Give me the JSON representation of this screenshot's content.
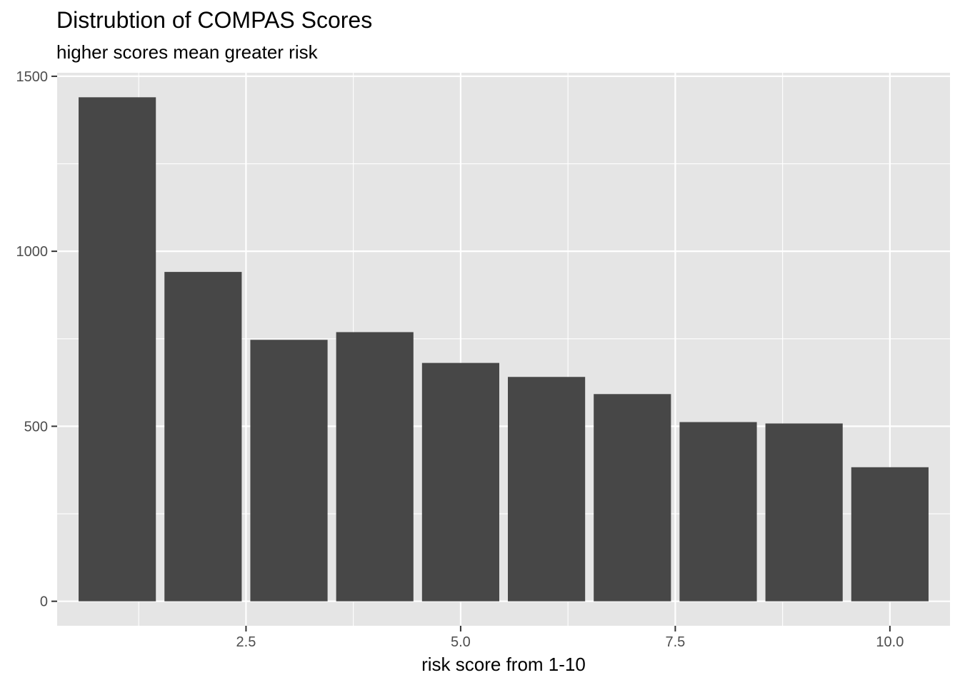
{
  "chart_data": {
    "type": "bar",
    "title": "Distrubtion of COMPAS Scores",
    "subtitle": "higher scores mean greater risk",
    "xlabel": "risk score from 1-10",
    "ylabel": "",
    "x": [
      1,
      2,
      3,
      4,
      5,
      6,
      7,
      8,
      9,
      10
    ],
    "values": [
      1440,
      941,
      747,
      769,
      681,
      641,
      592,
      512,
      508,
      383
    ],
    "xlim": [
      0.3,
      10.7
    ],
    "ylim": [
      -70,
      1510
    ],
    "x_ticks": [
      2.5,
      5.0,
      7.5,
      10.0
    ],
    "x_tick_labels": [
      "2.5",
      "5.0",
      "7.5",
      "10.0"
    ],
    "y_ticks": [
      0,
      500,
      1000,
      1500
    ],
    "y_tick_labels": [
      "0",
      "500",
      "1000",
      "1500"
    ],
    "grid": true,
    "legend": "none",
    "colors": {
      "bar": "#474747",
      "panel": "#e5e5e5",
      "grid": "#ffffff"
    }
  }
}
